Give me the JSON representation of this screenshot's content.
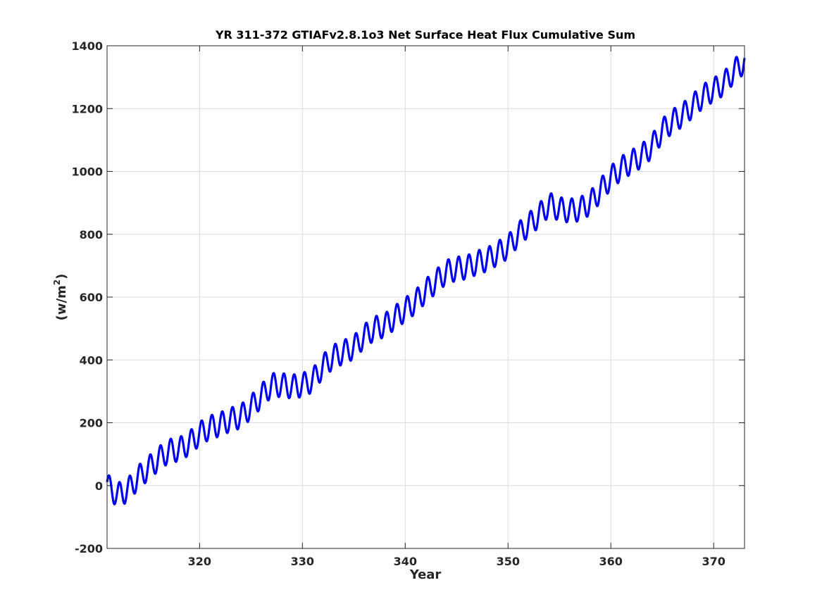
{
  "chart_data": {
    "type": "line",
    "title": "YR 311-372 GTIAFv2.8.1o3 Net Surface Heat Flux  Cumulative Sum",
    "xlabel": "Year",
    "ylabel": "(w/m",
    "ylabel_sup": "2",
    "ylabel_close": ")",
    "xlim": [
      311,
      373
    ],
    "ylim": [
      -200,
      1400
    ],
    "xticks": [
      320,
      330,
      340,
      350,
      360,
      370
    ],
    "yticks": [
      -200,
      0,
      200,
      400,
      600,
      800,
      1000,
      1200,
      1400
    ],
    "grid": true,
    "line_color": "#0000ee",
    "series": [
      {
        "x": [
          311,
          312,
          313,
          314,
          315,
          316,
          317,
          318,
          319,
          320,
          321,
          322,
          323,
          324,
          325,
          326,
          327,
          328,
          329,
          330,
          331,
          332,
          333,
          334,
          335,
          336,
          337,
          338,
          339,
          340,
          341,
          342,
          343,
          344,
          345,
          346,
          347,
          348,
          349,
          350,
          351,
          352,
          353,
          354,
          355,
          356,
          357,
          358,
          359,
          360,
          361,
          362,
          363,
          364,
          365,
          366,
          367,
          368,
          369,
          370,
          371,
          372,
          373
        ],
        "values": [
          0,
          -30,
          -15,
          25,
          55,
          85,
          110,
          115,
          135,
          165,
          185,
          195,
          210,
          220,
          250,
          285,
          320,
          320,
          315,
          320,
          335,
          380,
          410,
          425,
          440,
          475,
          500,
          510,
          535,
          560,
          585,
          620,
          650,
          680,
          690,
          695,
          710,
          720,
          740,
          760,
          800,
          830,
          860,
          895,
          880,
          875,
          880,
          900,
          940,
          980,
          1010,
          1030,
          1050,
          1080,
          1130,
          1160,
          1180,
          1210,
          1240,
          1260,
          1280,
          1320,
          1350
        ],
        "amplitude": 38,
        "cycles_per_year": 1
      }
    ]
  }
}
